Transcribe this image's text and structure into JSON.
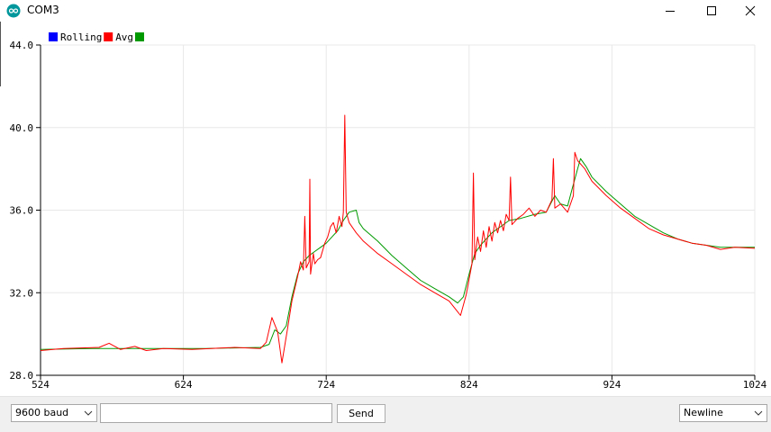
{
  "window": {
    "title": "COM3",
    "icon": "arduino-logo-icon",
    "controls": [
      "minimize-icon",
      "maximize-icon",
      "close-icon"
    ]
  },
  "legend": {
    "items": [
      "Rolling",
      "Avg",
      ""
    ],
    "colors": [
      "#0000ff",
      "#ff0000",
      "#009a00"
    ]
  },
  "chart_data": {
    "type": "line",
    "x_ticks": [
      "524",
      "624",
      "724",
      "824",
      "924",
      "1024"
    ],
    "y_ticks": [
      "44.0",
      "40.0",
      "36.0",
      "32.0",
      "28.0"
    ],
    "xlim": [
      524,
      1024
    ],
    "ylim": [
      28,
      44
    ],
    "grid": true,
    "legend_position": "top-left",
    "series": [
      {
        "name": "Avg",
        "color": "#ff0000",
        "points": [
          [
            524,
            29.2
          ],
          [
            540,
            29.3
          ],
          [
            565,
            29.35
          ],
          [
            572,
            29.55
          ],
          [
            580,
            29.25
          ],
          [
            590,
            29.4
          ],
          [
            598,
            29.2
          ],
          [
            610,
            29.3
          ],
          [
            630,
            29.25
          ],
          [
            660,
            29.35
          ],
          [
            678,
            29.3
          ],
          [
            682,
            29.6
          ],
          [
            686,
            30.8
          ],
          [
            690,
            30.1
          ],
          [
            693,
            28.6
          ],
          [
            697,
            30.3
          ],
          [
            700,
            31.6
          ],
          [
            704,
            32.8
          ],
          [
            706,
            33.5
          ],
          [
            708,
            33.1
          ],
          [
            709,
            35.7
          ],
          [
            710,
            33.2
          ],
          [
            712,
            33.5
          ],
          [
            712.5,
            37.5
          ],
          [
            713,
            32.9
          ],
          [
            715,
            33.9
          ],
          [
            716,
            33.4
          ],
          [
            718,
            33.6
          ],
          [
            720,
            33.7
          ],
          [
            723,
            34.4
          ],
          [
            725,
            34.7
          ],
          [
            727,
            35.2
          ],
          [
            729,
            35.4
          ],
          [
            731,
            34.9
          ],
          [
            733,
            35.7
          ],
          [
            735,
            35.2
          ],
          [
            736,
            35.9
          ],
          [
            737,
            40.6
          ],
          [
            738,
            35.9
          ],
          [
            740,
            35.4
          ],
          [
            742,
            35.2
          ],
          [
            745,
            34.9
          ],
          [
            750,
            34.5
          ],
          [
            760,
            33.9
          ],
          [
            770,
            33.4
          ],
          [
            780,
            32.9
          ],
          [
            790,
            32.4
          ],
          [
            800,
            32.0
          ],
          [
            810,
            31.6
          ],
          [
            818,
            30.9
          ],
          [
            822,
            31.9
          ],
          [
            826,
            33.4
          ],
          [
            827,
            37.8
          ],
          [
            828,
            33.6
          ],
          [
            830,
            34.7
          ],
          [
            832,
            34.0
          ],
          [
            834,
            35.0
          ],
          [
            836,
            34.2
          ],
          [
            838,
            35.2
          ],
          [
            840,
            34.5
          ],
          [
            842,
            35.4
          ],
          [
            844,
            34.9
          ],
          [
            846,
            35.5
          ],
          [
            848,
            35.0
          ],
          [
            850,
            35.8
          ],
          [
            852,
            35.5
          ],
          [
            853,
            37.6
          ],
          [
            854,
            35.3
          ],
          [
            858,
            35.6
          ],
          [
            862,
            35.8
          ],
          [
            866,
            36.1
          ],
          [
            870,
            35.7
          ],
          [
            874,
            36.0
          ],
          [
            878,
            35.9
          ],
          [
            882,
            36.5
          ],
          [
            883,
            38.5
          ],
          [
            884,
            36.1
          ],
          [
            888,
            36.3
          ],
          [
            893,
            35.9
          ],
          [
            897,
            36.7
          ],
          [
            898,
            38.8
          ],
          [
            900,
            38.4
          ],
          [
            905,
            38.0
          ],
          [
            910,
            37.4
          ],
          [
            920,
            36.7
          ],
          [
            930,
            36.1
          ],
          [
            940,
            35.6
          ],
          [
            950,
            35.1
          ],
          [
            960,
            34.8
          ],
          [
            970,
            34.6
          ],
          [
            980,
            34.4
          ],
          [
            990,
            34.3
          ],
          [
            1000,
            34.1
          ],
          [
            1010,
            34.2
          ],
          [
            1024,
            34.15
          ]
        ]
      },
      {
        "name": "",
        "color": "#009a00",
        "points": [
          [
            524,
            29.25
          ],
          [
            560,
            29.3
          ],
          [
            600,
            29.3
          ],
          [
            640,
            29.3
          ],
          [
            678,
            29.35
          ],
          [
            684,
            29.5
          ],
          [
            688,
            30.2
          ],
          [
            692,
            30.0
          ],
          [
            696,
            30.4
          ],
          [
            700,
            31.8
          ],
          [
            704,
            32.9
          ],
          [
            708,
            33.5
          ],
          [
            712,
            33.8
          ],
          [
            716,
            34.0
          ],
          [
            720,
            34.2
          ],
          [
            724,
            34.4
          ],
          [
            728,
            34.7
          ],
          [
            732,
            35.0
          ],
          [
            736,
            35.5
          ],
          [
            740,
            35.9
          ],
          [
            745,
            36.0
          ],
          [
            747,
            35.4
          ],
          [
            750,
            35.1
          ],
          [
            760,
            34.5
          ],
          [
            770,
            33.8
          ],
          [
            780,
            33.2
          ],
          [
            790,
            32.6
          ],
          [
            800,
            32.2
          ],
          [
            810,
            31.8
          ],
          [
            816,
            31.5
          ],
          [
            820,
            31.8
          ],
          [
            824,
            32.9
          ],
          [
            828,
            33.9
          ],
          [
            832,
            34.3
          ],
          [
            836,
            34.6
          ],
          [
            840,
            34.9
          ],
          [
            844,
            35.1
          ],
          [
            848,
            35.3
          ],
          [
            852,
            35.5
          ],
          [
            860,
            35.6
          ],
          [
            870,
            35.8
          ],
          [
            878,
            35.9
          ],
          [
            884,
            36.7
          ],
          [
            888,
            36.3
          ],
          [
            893,
            36.2
          ],
          [
            896,
            37.0
          ],
          [
            900,
            38.0
          ],
          [
            902,
            38.5
          ],
          [
            906,
            38.1
          ],
          [
            910,
            37.6
          ],
          [
            920,
            36.9
          ],
          [
            930,
            36.3
          ],
          [
            940,
            35.7
          ],
          [
            950,
            35.3
          ],
          [
            960,
            34.9
          ],
          [
            970,
            34.6
          ],
          [
            980,
            34.4
          ],
          [
            990,
            34.3
          ],
          [
            1000,
            34.2
          ],
          [
            1010,
            34.2
          ],
          [
            1024,
            34.2
          ]
        ]
      }
    ]
  },
  "bottom_bar": {
    "baud_value": "9600 baud",
    "line_ending_value": "Newline",
    "message_value": "",
    "send_label": "Send"
  }
}
